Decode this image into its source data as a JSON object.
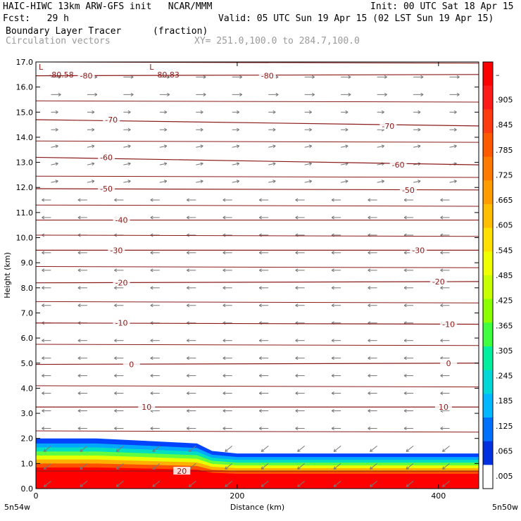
{
  "header": {
    "line1_left": "HAIC-HIWC 13km ARW-GFS init   NCAR/MMM",
    "line1_right": "Init: 00 UTC Sat 18 Apr 15",
    "line2_left": "Fcst:   29 h",
    "line2_right": "Valid: 05 UTC Sun 19 Apr 15 (02 LST Sun 19 Apr 15)",
    "line3_left": "Boundary Layer Tracer",
    "line3_mid": "(fraction)",
    "line4_left": "Circulation vectors",
    "line4_mid": "XY= 251.0,100.0 to 284.7,100.0"
  },
  "chart_data": {
    "type": "cross-section",
    "xlabel": "Distance (km)",
    "ylabel": "Height (km)",
    "xlim": [
      0,
      440
    ],
    "ylim": [
      0,
      17
    ],
    "x_ticks": [
      "0",
      "200",
      "400"
    ],
    "y_ticks": [
      "0.0",
      "1.0",
      "2.0",
      "3.0",
      "4.0",
      "5.0",
      "6.0",
      "7.0",
      "8.0",
      "9.0",
      "10.0",
      "11.0",
      "12.0",
      "13.0",
      "14.0",
      "15.0",
      "16.0",
      "17.0"
    ],
    "x_end_labels": {
      "left": "5n54w",
      "right": "5n50w"
    },
    "shading_field": "Boundary Layer Tracer (fraction)",
    "shading_profile": [
      {
        "x": 0,
        "top_km": 2.0
      },
      {
        "x": 60,
        "top_km": 2.0
      },
      {
        "x": 110,
        "top_km": 1.9
      },
      {
        "x": 160,
        "top_km": 1.8
      },
      {
        "x": 175,
        "top_km": 1.5
      },
      {
        "x": 200,
        "top_km": 1.4
      },
      {
        "x": 440,
        "top_km": 1.4
      }
    ],
    "colorbar": {
      "labels": [
        "–",
        ".905",
        ".845",
        ".785",
        ".725",
        ".665",
        ".605",
        ".545",
        ".485",
        ".425",
        ".365",
        ".305",
        ".245",
        ".185",
        ".125",
        ".065",
        ".005"
      ],
      "colors": [
        "#ff0000",
        "#ff1a1a",
        "#ff3b10",
        "#ff5a00",
        "#ff7a00",
        "#ff9c00",
        "#ffbe00",
        "#ffe000",
        "#f0ff00",
        "#c8ff00",
        "#8cff00",
        "#40ff40",
        "#00f0a0",
        "#00d8d8",
        "#00b8ff",
        "#0070ff",
        "#0030e0",
        "#ffffff"
      ]
    },
    "contours": [
      {
        "label": "-80",
        "y_km": [
          16.45,
          16.5
        ],
        "label_pos": [
          [
            50,
            16.45
          ],
          [
            230,
            16.45
          ]
        ]
      },
      {
        "label": "-70",
        "y_km": [
          14.7,
          14.45
        ],
        "label_pos": [
          [
            75,
            14.7
          ],
          [
            350,
            14.45
          ]
        ]
      },
      {
        "label": "-60",
        "y_km": [
          13.2,
          12.9
        ],
        "label_pos": [
          [
            70,
            13.2
          ],
          [
            360,
            12.9
          ]
        ]
      },
      {
        "label": "-50",
        "y_km": [
          11.95,
          11.9
        ],
        "label_pos": [
          [
            70,
            11.95
          ],
          [
            370,
            11.9
          ]
        ]
      },
      {
        "label": "-40",
        "y_km": [
          10.7,
          10.7
        ],
        "label_pos": [
          [
            85,
            10.7
          ]
        ]
      },
      {
        "label": "-30",
        "y_km": [
          9.5,
          9.5
        ],
        "label_pos": [
          [
            80,
            9.5
          ],
          [
            380,
            9.5
          ]
        ]
      },
      {
        "label": "-20",
        "y_km": [
          8.2,
          8.25
        ],
        "label_pos": [
          [
            85,
            8.2
          ],
          [
            400,
            8.25
          ]
        ]
      },
      {
        "label": "-10",
        "y_km": [
          6.6,
          6.55
        ],
        "label_pos": [
          [
            85,
            6.6
          ],
          [
            410,
            6.55
          ]
        ]
      },
      {
        "label": "0",
        "y_km": [
          4.95,
          5.0
        ],
        "label_pos": [
          [
            95,
            4.95
          ],
          [
            410,
            5.0
          ]
        ]
      },
      {
        "label": "10",
        "y_km": [
          3.25,
          3.25
        ],
        "label_pos": [
          [
            110,
            3.25
          ],
          [
            405,
            3.25
          ]
        ]
      },
      {
        "label": "20",
        "y_km": [
          0.7,
          0.7
        ],
        "label_pos": [
          [
            145,
            0.7
          ]
        ]
      }
    ],
    "unlabeled_contour_levels_km": [
      17.0,
      15.45,
      13.85,
      12.45,
      11.3,
      10.1,
      8.85,
      7.45,
      5.75,
      4.1,
      2.3
    ],
    "annotations": [
      {
        "text": "L",
        "x": 0,
        "y_km": 16.8
      },
      {
        "text": "-80.58",
        "x": 10,
        "y_km": 16.5
      },
      {
        "text": "L",
        "x": 110,
        "y_km": 16.8
      },
      {
        "text": "-80.83",
        "x": 115,
        "y_km": 16.5
      }
    ],
    "vector_flow": "mostly right-pointing above ~12 km, left-pointing below ~12 km"
  }
}
